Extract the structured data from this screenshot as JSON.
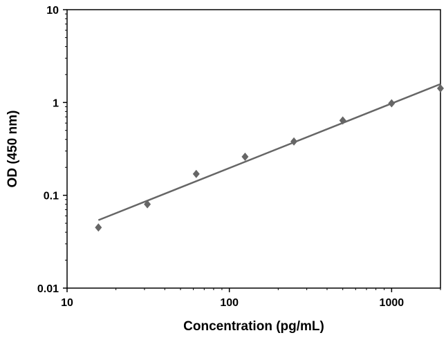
{
  "chart_data": {
    "type": "scatter",
    "title": "",
    "xlabel": "Concentration (pg/mL)",
    "ylabel": "OD (450 nm)",
    "x_scale": "log",
    "y_scale": "log",
    "xlim": [
      10,
      2000
    ],
    "ylim": [
      0.01,
      10
    ],
    "x_ticks": [
      10,
      100,
      1000
    ],
    "x_tick_labels": [
      "10",
      "100",
      "1000"
    ],
    "y_ticks": [
      0.01,
      0.1,
      1,
      10
    ],
    "y_tick_labels": [
      "0.01",
      "0.1",
      "1",
      "10"
    ],
    "grid": false,
    "legend": "none",
    "series": [
      {
        "marker": "diamond",
        "color": "#666666",
        "x": [
          15.6,
          31.25,
          62.5,
          125,
          250,
          500,
          1000,
          2000
        ],
        "y": [
          0.045,
          0.08,
          0.17,
          0.26,
          0.38,
          0.64,
          0.98,
          1.42
        ]
      }
    ],
    "fit_line": {
      "color": "#666666",
      "x": [
        15.6,
        2000
      ],
      "y": [
        0.054,
        1.58
      ]
    }
  }
}
